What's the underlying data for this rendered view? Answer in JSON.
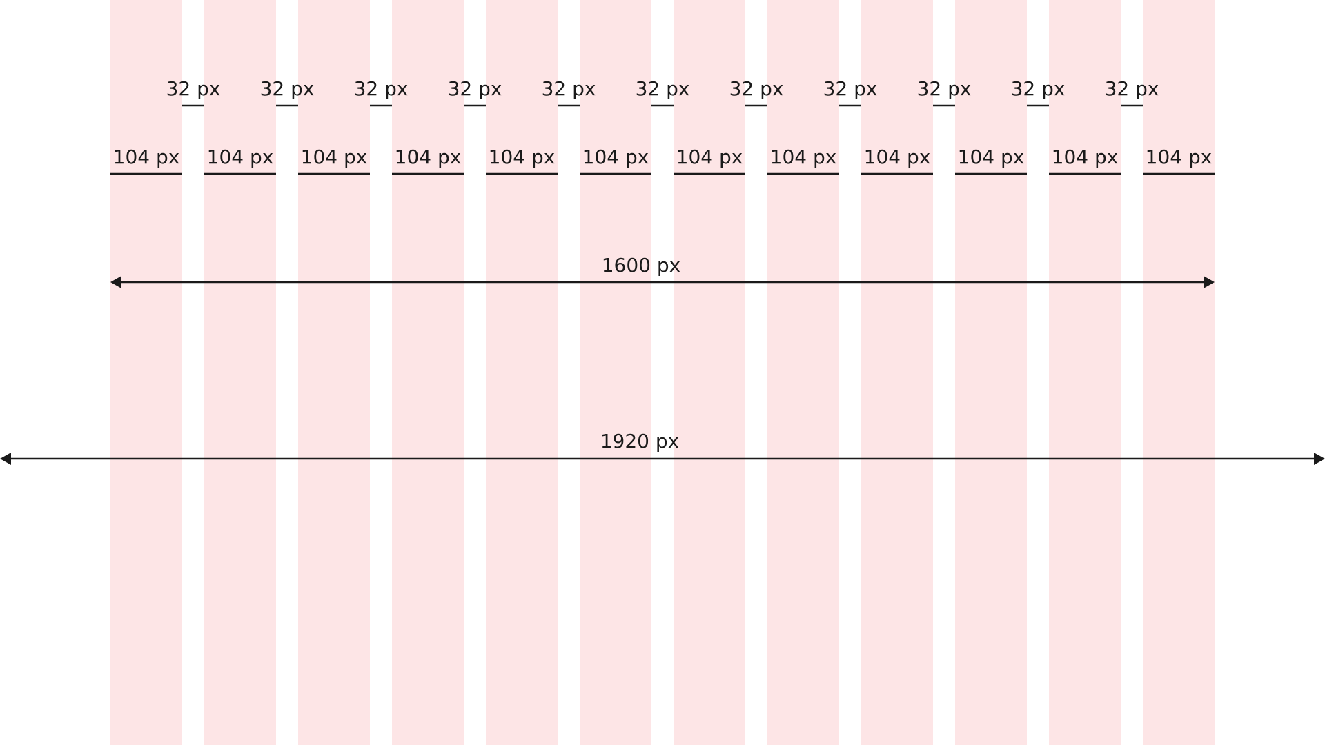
{
  "gutter_label": "32 px",
  "column_label": "104 px",
  "content_width_label": "1600 px",
  "page_width_label": "1920 px",
  "column_count": 12,
  "column_color": "#fde5e6",
  "line_color": "#1a1a1a"
}
